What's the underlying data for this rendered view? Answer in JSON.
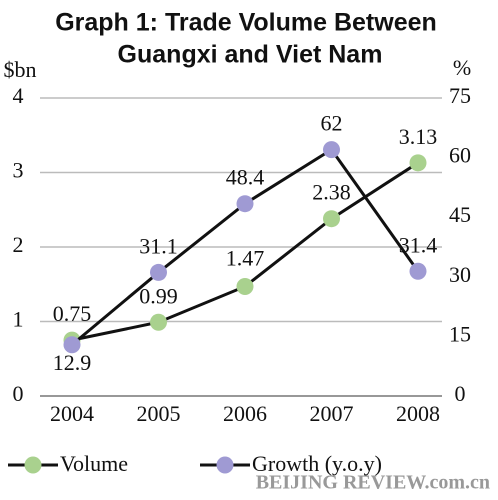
{
  "chart_data": {
    "type": "line",
    "title": "Graph 1: Trade Volume Between",
    "subtitle": "Guangxi and Viet Nam",
    "ylabel": "$bn",
    "y2label": "%",
    "categories": [
      "2004",
      "2005",
      "2006",
      "2007",
      "2008"
    ],
    "series": [
      {
        "name": "Volume",
        "color": "#a9d18e",
        "values": [
          0.75,
          0.99,
          1.47,
          2.38,
          3.13
        ]
      },
      {
        "name": "Growth (y.o.y)",
        "color": "#9f9ad3",
        "axis": "y2",
        "values": [
          12.9,
          31.1,
          48.4,
          62,
          31.4
        ]
      }
    ],
    "ylim": [
      0,
      4
    ],
    "yticks": [
      0,
      1,
      2,
      3,
      4
    ],
    "y2lim": [
      0,
      75
    ],
    "y2ticks": [
      0,
      15,
      30,
      45,
      60,
      75
    ],
    "grid": true,
    "line_color": "#111111",
    "watermark": "BEIJING REVIEW.com.cn"
  }
}
